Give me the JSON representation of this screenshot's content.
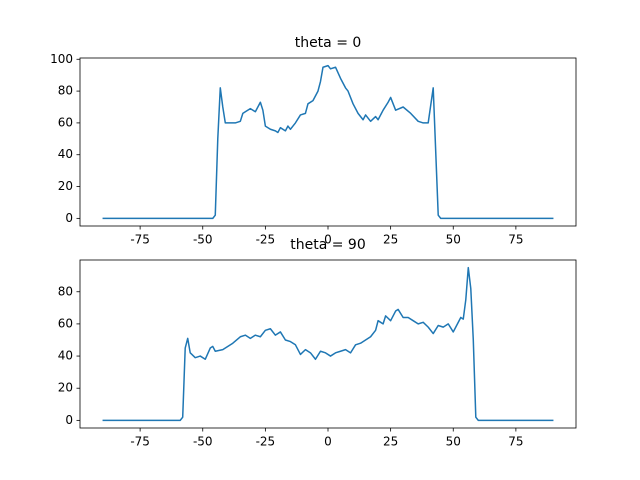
{
  "chart_data": [
    {
      "type": "line",
      "title": "theta = 0",
      "color": "#1f77b4",
      "xlim": [
        -99,
        99
      ],
      "ylim": [
        -4.8,
        100.8
      ],
      "xticks": [
        -75,
        -50,
        -25,
        0,
        25,
        50,
        75
      ],
      "yticks": [
        0,
        20,
        40,
        60,
        80,
        100
      ],
      "x": [
        -90,
        -46,
        -45,
        -44,
        -43,
        -42,
        -41,
        -39,
        -37,
        -35,
        -34,
        -33,
        -31,
        -29,
        -27,
        -26,
        -25,
        -23,
        -21,
        -20,
        -19,
        -17,
        -16,
        -15,
        -13,
        -11,
        -9,
        -8,
        -6,
        -4,
        -3,
        -2,
        0,
        1,
        3,
        5,
        7,
        8,
        10,
        12,
        14,
        15,
        17,
        19,
        20,
        22,
        24,
        25,
        27,
        30,
        33,
        36,
        38,
        40,
        42,
        44,
        45,
        90
      ],
      "values": [
        0,
        0,
        2,
        50,
        82,
        70,
        60,
        60,
        60,
        61,
        66,
        67,
        69,
        67,
        73,
        68,
        58,
        56,
        55,
        54,
        57,
        55,
        58,
        56,
        60,
        65,
        66,
        72,
        74,
        80,
        86,
        95,
        96,
        94,
        95,
        88,
        82,
        80,
        72,
        66,
        62,
        65,
        61,
        64,
        62,
        68,
        73,
        76,
        68,
        70,
        66,
        61,
        60,
        60,
        82,
        2,
        0,
        0
      ]
    },
    {
      "type": "line",
      "title": "theta = 90",
      "color": "#1f77b4",
      "xlim": [
        -99,
        99
      ],
      "ylim": [
        -4.75,
        99.75
      ],
      "xticks": [
        -75,
        -50,
        -25,
        0,
        25,
        50,
        75
      ],
      "yticks": [
        0,
        20,
        40,
        60,
        80
      ],
      "x": [
        -90,
        -59,
        -58,
        -57,
        -56,
        -55,
        -53,
        -51,
        -49,
        -47,
        -46,
        -45,
        -42,
        -38,
        -35,
        -33,
        -31,
        -29,
        -27,
        -25,
        -23,
        -21,
        -19,
        -17,
        -15,
        -13,
        -11,
        -9,
        -7,
        -5,
        -3,
        -1,
        1,
        3,
        5,
        7,
        9,
        11,
        13,
        15,
        17,
        19,
        20,
        22,
        23,
        25,
        27,
        28,
        30,
        32,
        34,
        36,
        38,
        40,
        42,
        44,
        46,
        48,
        50,
        51,
        53,
        54,
        55,
        56,
        57,
        58,
        59,
        60,
        90
      ],
      "values": [
        0,
        0,
        2,
        45,
        51,
        42,
        39,
        40,
        38,
        45,
        46,
        43,
        44,
        48,
        52,
        53,
        51,
        53,
        52,
        56,
        57,
        53,
        55,
        50,
        49,
        47,
        41,
        44,
        42,
        38,
        43,
        42,
        40,
        42,
        43,
        44,
        42,
        47,
        48,
        50,
        52,
        56,
        62,
        60,
        65,
        62,
        68,
        69,
        64,
        64,
        62,
        60,
        61,
        58,
        54,
        59,
        58,
        60,
        55,
        58,
        64,
        63,
        75,
        95,
        82,
        50,
        2,
        0,
        0
      ]
    }
  ]
}
